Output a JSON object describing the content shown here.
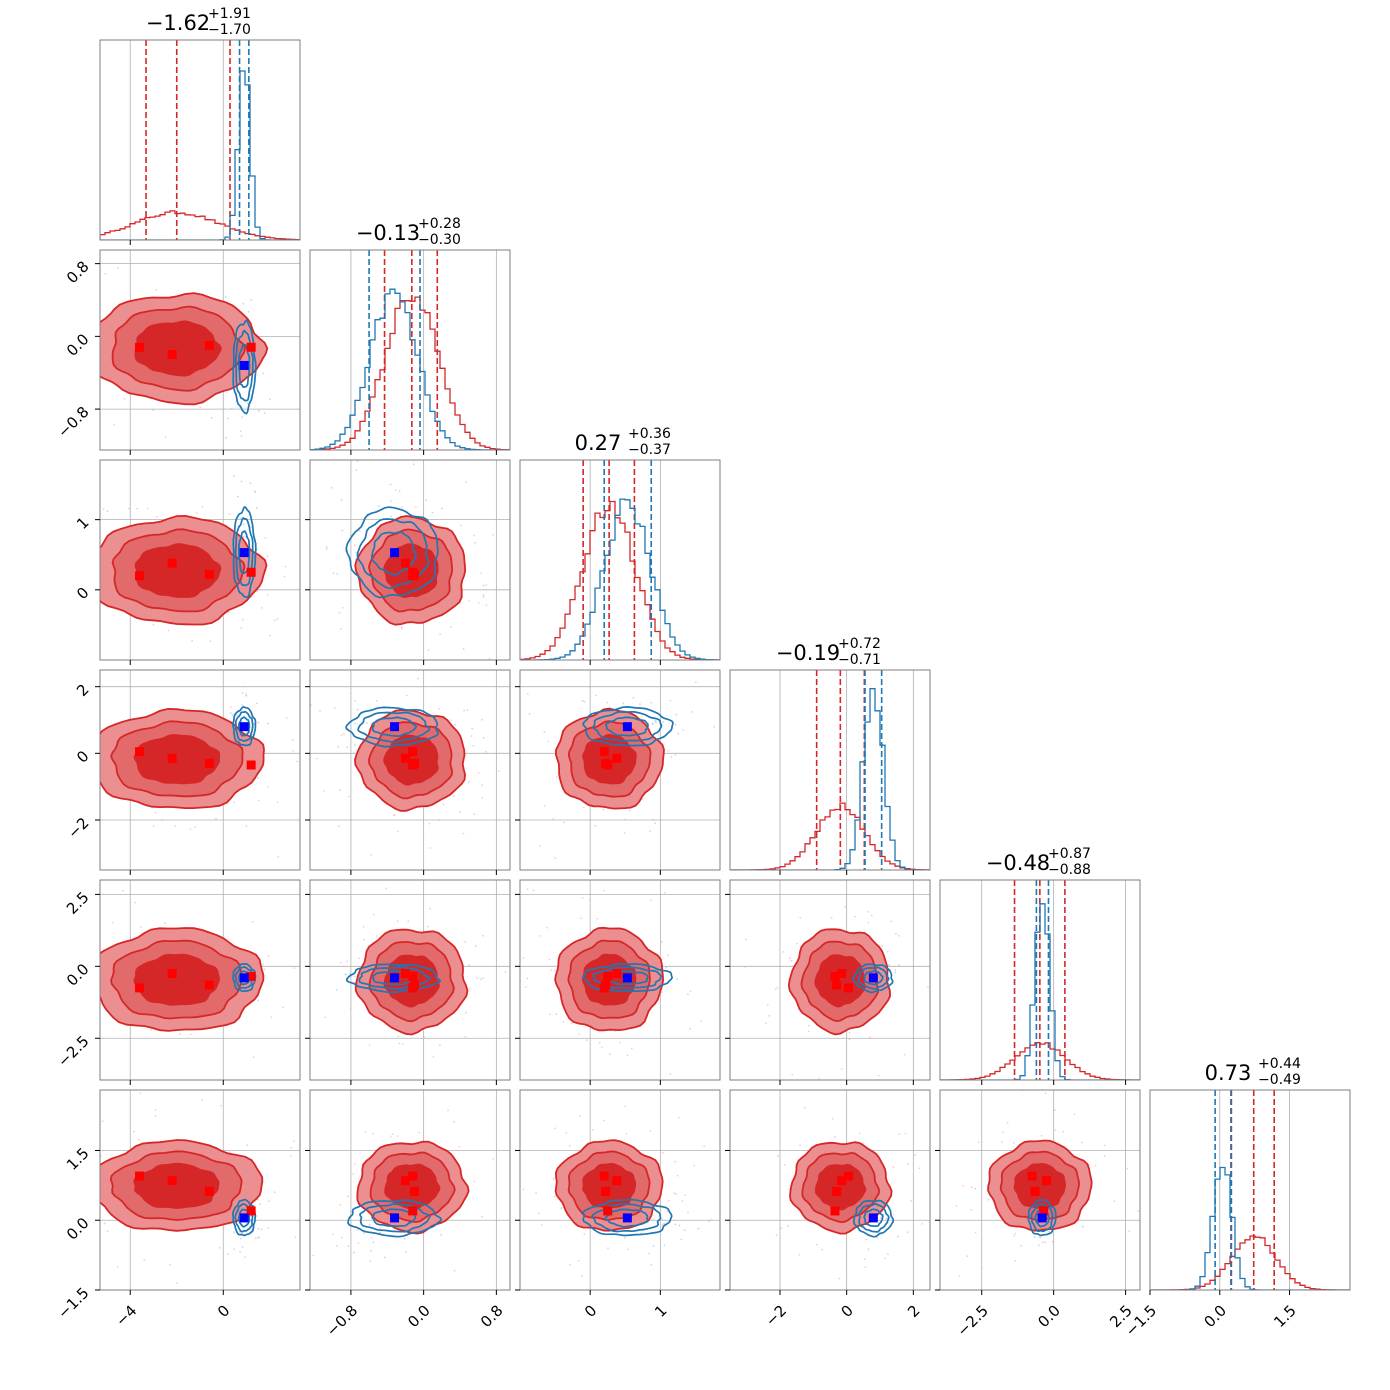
{
  "chart_data": {
    "type": "scatter",
    "subtype": "corner-plot",
    "grid": true,
    "colors": {
      "red": "#d62728",
      "red_light": "#eb8f90",
      "red_mid": "#e26a6b",
      "blue": "#1f77b4",
      "truth_blue": "#0000ff",
      "truth_red": "#ff0000"
    },
    "parameters": [
      {
        "title_value": "−1.62",
        "title_plus": "+1.91",
        "title_minus": "−1.70",
        "range": [
          -5.3,
          3.3
        ],
        "ticks": [
          -4,
          0
        ],
        "tick_labels": [
          "−4",
          "0"
        ],
        "red": {
          "mean": -2.0,
          "sd": 1.8,
          "q": [
            -3.32,
            0.29
          ]
        },
        "blue": {
          "mean": 0.9,
          "sd": 0.25,
          "q": [
            0.7,
            1.1
          ]
        },
        "truth_blue": 0.9,
        "truth_red": [
          -3.6,
          -2.2,
          -0.6,
          1.2
        ],
        "hist_peak_blue": 1.0,
        "hist_peak_red": 0.15
      },
      {
        "title_value": "−0.13",
        "title_plus": "+0.28",
        "title_minus": "−0.30",
        "range": [
          -1.25,
          0.95
        ],
        "ticks": [
          -0.8,
          0.0,
          0.8
        ],
        "tick_labels": [
          "−0.8",
          "0.0",
          "0.8"
        ],
        "red": {
          "mean": -0.13,
          "sd": 0.29,
          "q": [
            -0.43,
            0.15
          ]
        },
        "blue": {
          "mean": -0.33,
          "sd": 0.26,
          "q": [
            -0.6,
            -0.04
          ]
        },
        "truth_blue": -0.32,
        "truth_red": [
          -0.12,
          -0.2,
          -0.1,
          -0.12
        ],
        "hist_peak_blue": 0.85,
        "hist_peak_red": 0.85
      },
      {
        "title_value": "0.27",
        "title_plus": "+0.36",
        "title_minus": "−0.37",
        "range": [
          -1.0,
          1.85
        ],
        "ticks": [
          0,
          1
        ],
        "tick_labels": [
          "0",
          "1"
        ],
        "red": {
          "mean": 0.27,
          "sd": 0.37,
          "q": [
            -0.1,
            0.63
          ]
        },
        "blue": {
          "mean": 0.53,
          "sd": 0.33,
          "q": [
            0.2,
            0.87
          ]
        },
        "truth_blue": 0.53,
        "truth_red": [
          0.2,
          0.38,
          0.22,
          0.25
        ],
        "hist_peak_blue": 0.85,
        "hist_peak_red": 0.85
      },
      {
        "title_value": "−0.19",
        "title_plus": "+0.72",
        "title_minus": "−0.71",
        "range": [
          -3.5,
          2.5
        ],
        "ticks": [
          -2,
          0,
          2
        ],
        "tick_labels": [
          "−2",
          "0",
          "2"
        ],
        "red": {
          "mean": -0.19,
          "sd": 0.72,
          "q": [
            -0.9,
            0.53
          ]
        },
        "blue": {
          "mean": 0.8,
          "sd": 0.3,
          "q": [
            0.55,
            1.05
          ]
        },
        "truth_blue": 0.8,
        "truth_red": [
          0.05,
          -0.15,
          -0.3,
          -0.35
        ],
        "hist_peak_blue": 1.0,
        "hist_peak_red": 0.35
      },
      {
        "title_value": "−0.48",
        "title_plus": "+0.87",
        "title_minus": "−0.88",
        "range": [
          -3.95,
          3.0
        ],
        "ticks": [
          -2.5,
          0.0,
          2.5
        ],
        "tick_labels": [
          "−2.5",
          "0.0",
          "2.5"
        ],
        "red": {
          "mean": -0.48,
          "sd": 0.87,
          "q": [
            -1.36,
            0.39
          ]
        },
        "blue": {
          "mean": -0.4,
          "sd": 0.25,
          "q": [
            -0.6,
            -0.18
          ]
        },
        "truth_blue": -0.4,
        "truth_red": [
          -0.75,
          -0.25,
          -0.65,
          -0.35
        ],
        "hist_peak_blue": 1.0,
        "hist_peak_red": 0.2
      },
      {
        "title_value": "0.73",
        "title_plus": "+0.44",
        "title_minus": "−0.49",
        "range": [
          -1.5,
          2.8
        ],
        "ticks": [
          -1.5,
          0.0,
          1.5
        ],
        "tick_labels": [
          "−1.5",
          "0.0",
          "1.5"
        ],
        "red": {
          "mean": 0.73,
          "sd": 0.47,
          "q": [
            0.24,
            1.17
          ]
        },
        "blue": {
          "mean": 0.05,
          "sd": 0.2,
          "q": [
            -0.1,
            0.25
          ]
        },
        "truth_blue": 0.05,
        "truth_red": [
          0.95,
          0.85,
          0.62,
          0.2
        ],
        "hist_peak_blue": 0.7,
        "hist_peak_red": 0.3
      }
    ]
  }
}
